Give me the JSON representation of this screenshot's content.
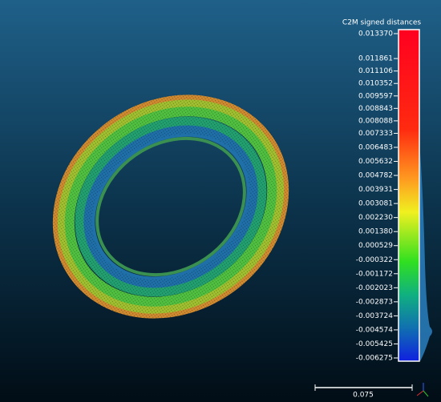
{
  "colorbar": {
    "title": "C2M signed distances",
    "ylim": [
      -0.006275,
      0.01337
    ],
    "yticks": [
      {
        "value": 0.01337,
        "label": "0.013370"
      },
      0.011861,
      0.011106,
      0.010352,
      0.009597,
      0.008843,
      0.008088,
      0.007333,
      0.006483,
      0.005632,
      0.004782,
      0.003931,
      0.003081,
      {
        "value": 0.00223,
        "label": "0.002230"
      },
      {
        "value": 0.00138,
        "label": "0.001380"
      },
      0.000529,
      -0.000322,
      -0.001172,
      -0.002023,
      -0.002873,
      -0.003724,
      -0.004574,
      -0.005425,
      -0.006275
    ]
  },
  "scale_bar": {
    "label": "0.075"
  }
}
